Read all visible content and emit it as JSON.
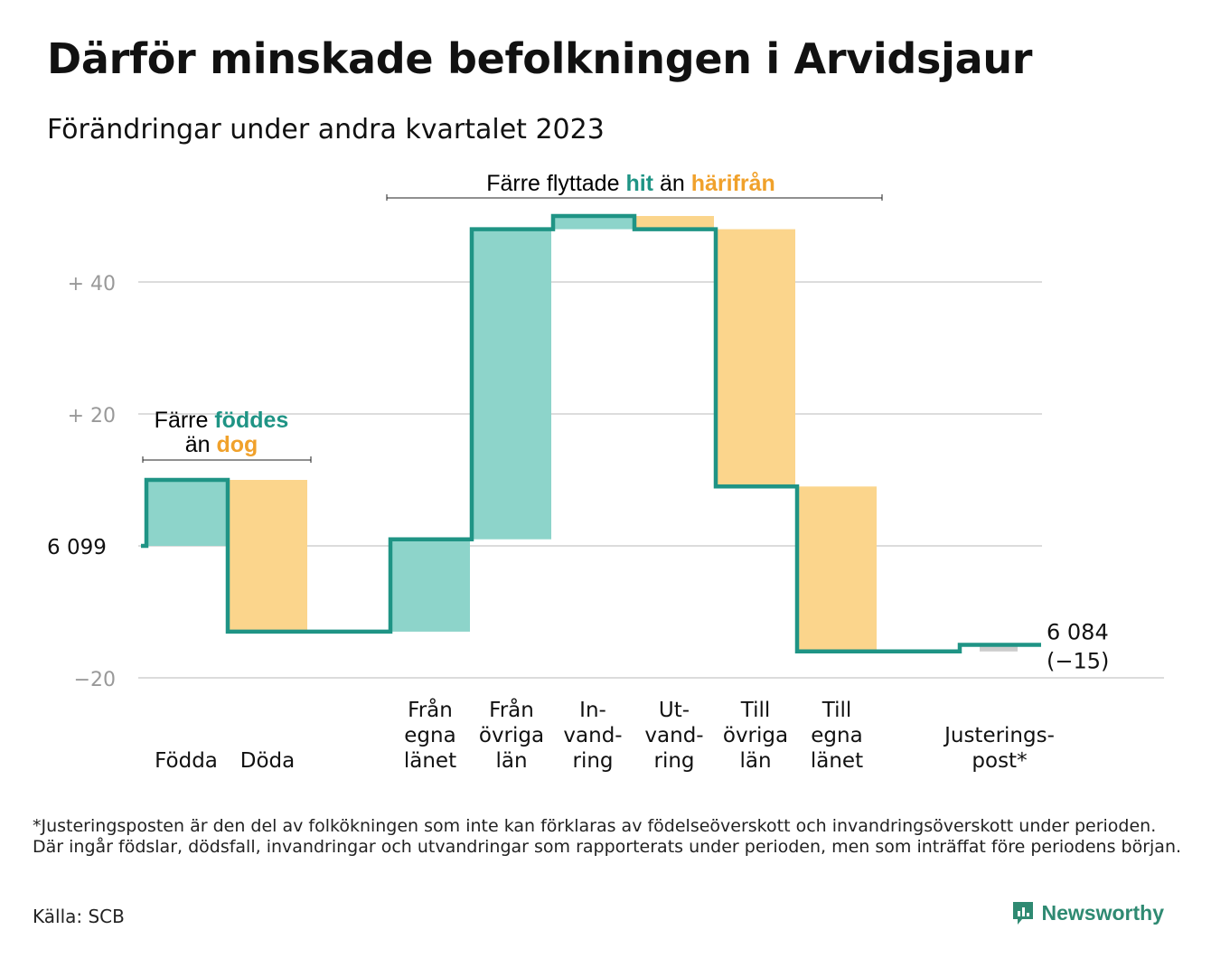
{
  "title": "Därför minskade befolkningen i Arvidsjaur",
  "subtitle": "Förändringar under andra kvartalet 2023",
  "colors": {
    "inflow": "#8dd4ca",
    "outflow": "#fbd58c",
    "adjustment": "#cccccc",
    "line": "#1f9485",
    "accent_teal": "#1f9485",
    "accent_orange": "#f0a12b",
    "grid": "#dcdcdc",
    "tick": "#999999"
  },
  "annotations": {
    "birth_prefix": "Färre",
    "birth_hl1": "föddes",
    "birth_mid": "än",
    "birth_hl2": "dog",
    "move_prefix": "Färre flyttade",
    "move_hl1": "hit",
    "move_mid": "än",
    "move_hl2": "härifrån"
  },
  "chart_data": {
    "type": "waterfall",
    "start_value": 6099,
    "start_label": "6  099",
    "end_label_value": "6 084",
    "end_label_change": "(−15)",
    "y_ticks": [
      {
        "value": 40,
        "label": "+  40"
      },
      {
        "value": 20,
        "label": "+  20"
      },
      {
        "value": 0,
        "label": "6  099"
      },
      {
        "value": -20,
        "label": "−20"
      }
    ],
    "ylim": [
      -20,
      50
    ],
    "grid": true,
    "steps": [
      {
        "label": [
          "Födda"
        ],
        "change": 10,
        "kind": "inflow"
      },
      {
        "label": [
          "Döda"
        ],
        "change": -23,
        "kind": "outflow"
      },
      {
        "label": [],
        "change": 0,
        "kind": "gap"
      },
      {
        "label": [
          "Från",
          "egna",
          "länet"
        ],
        "change": 14,
        "kind": "inflow"
      },
      {
        "label": [
          "Från",
          "övriga",
          "län"
        ],
        "change": 47,
        "kind": "inflow"
      },
      {
        "label": [
          "In-",
          "vand-",
          "ring"
        ],
        "change": 2,
        "kind": "inflow"
      },
      {
        "label": [
          "Ut-",
          "vand-",
          "ring"
        ],
        "change": -2,
        "kind": "outflow"
      },
      {
        "label": [
          "Till",
          "övriga",
          "län"
        ],
        "change": -39,
        "kind": "outflow"
      },
      {
        "label": [
          "Till",
          "egna",
          "länet"
        ],
        "change": -25,
        "kind": "outflow"
      },
      {
        "label": [],
        "change": 0,
        "kind": "gap"
      },
      {
        "label": [
          "Justerings-",
          "post*"
        ],
        "change": 1,
        "kind": "adjustment"
      }
    ],
    "end_change": -15
  },
  "footnote": "*Justeringsposten är den del av folkökningen som inte kan förklaras av födelseöverskott och invandringsöverskott under perioden. Där ingår födslar, dödsfall, invandringar och utvandringar som rapporterats under perioden, men som inträffat före periodens början.",
  "source": "Källa: SCB",
  "brand": "Newsworthy"
}
